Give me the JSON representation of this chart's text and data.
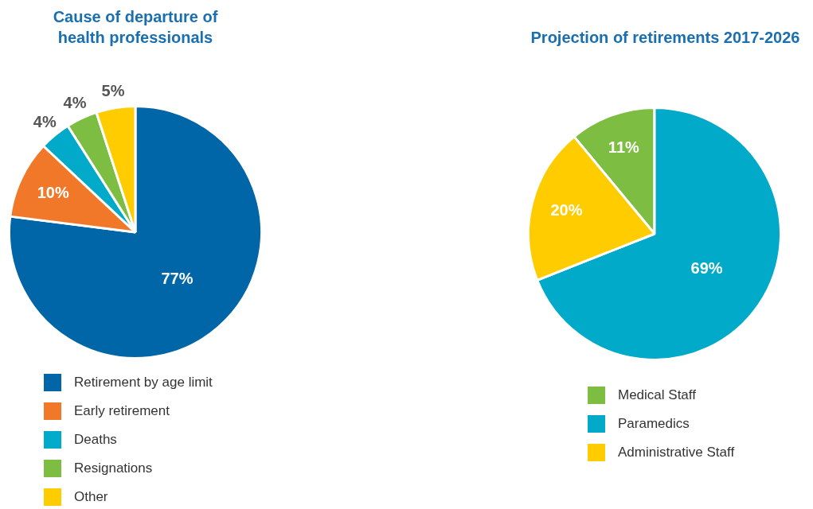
{
  "chart_data": [
    {
      "type": "pie",
      "title": "Cause of departure of\nhealth professionals",
      "categories": [
        "Retirement by age limit",
        "Early retirement",
        "Deaths",
        "Resignations",
        "Other"
      ],
      "values": [
        77,
        10,
        4,
        4,
        5
      ],
      "colors": [
        "#0066a8",
        "#f07828",
        "#00aac8",
        "#7dbd42",
        "#ffcc00"
      ],
      "value_labels": [
        "77%",
        "10%",
        "4%",
        "4%",
        "5%"
      ],
      "legend": "bottom"
    },
    {
      "type": "pie",
      "title": "Projection of retirements 2017-2026",
      "categories": [
        "Medical Staff",
        "Paramedics",
        "Administrative Staff"
      ],
      "values": [
        11,
        69,
        20
      ],
      "colors": [
        "#7dbd42",
        "#00aac8",
        "#ffcc00"
      ],
      "value_labels": [
        "11%",
        "69%",
        "20%"
      ],
      "legend": "bottom"
    }
  ]
}
